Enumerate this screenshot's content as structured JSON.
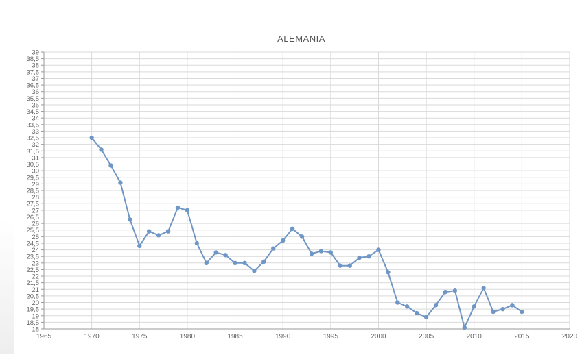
{
  "chart_data": {
    "type": "line",
    "title": "ALEMANIA",
    "xlabel": "",
    "ylabel": "",
    "xlim": [
      1965,
      2020
    ],
    "ylim": [
      18,
      39
    ],
    "x_ticks": [
      "1965",
      "1970",
      "1975",
      "1980",
      "1985",
      "1990",
      "1995",
      "2000",
      "2005",
      "2010",
      "2015",
      "2020"
    ],
    "y_ticks": [
      "18",
      "18,5",
      "19",
      "19,5",
      "20",
      "20,5",
      "21",
      "21,5",
      "22",
      "22,5",
      "23",
      "23,5",
      "24",
      "24,5",
      "25",
      "25,5",
      "26",
      "26,5",
      "27",
      "27,5",
      "28",
      "28,5",
      "29",
      "29,5",
      "30",
      "30,5",
      "31",
      "31,5",
      "32",
      "32,5",
      "33",
      "33,5",
      "34",
      "34,5",
      "35",
      "35,5",
      "36",
      "36,5",
      "37",
      "37,5",
      "38",
      "38,5",
      "39"
    ],
    "grid": true,
    "legend": "none",
    "series": [
      {
        "color": "#6f96c4",
        "x": [
          1970,
          1971,
          1972,
          1973,
          1974,
          1975,
          1976,
          1977,
          1978,
          1979,
          1980,
          1981,
          1982,
          1983,
          1984,
          1985,
          1986,
          1987,
          1988,
          1989,
          1990,
          1991,
          1992,
          1993,
          1994,
          1995,
          1996,
          1997,
          1998,
          1999,
          2000,
          2001,
          2002,
          2003,
          2004,
          2005,
          2006,
          2007,
          2008,
          2009,
          2010,
          2011,
          2012,
          2013,
          2014,
          2015
        ],
        "y": [
          32.5,
          31.6,
          30.4,
          29.1,
          26.3,
          24.3,
          25.4,
          25.1,
          25.4,
          27.2,
          27.0,
          24.5,
          23.0,
          23.8,
          23.6,
          23.0,
          23.0,
          22.4,
          23.1,
          24.1,
          24.7,
          25.6,
          25.0,
          23.7,
          23.9,
          23.8,
          22.8,
          22.8,
          23.4,
          23.5,
          24.0,
          22.3,
          20.0,
          19.7,
          19.2,
          18.9,
          19.8,
          20.8,
          20.9,
          18.1,
          19.7,
          21.1,
          19.3,
          19.5,
          19.8,
          19.3
        ]
      }
    ]
  }
}
